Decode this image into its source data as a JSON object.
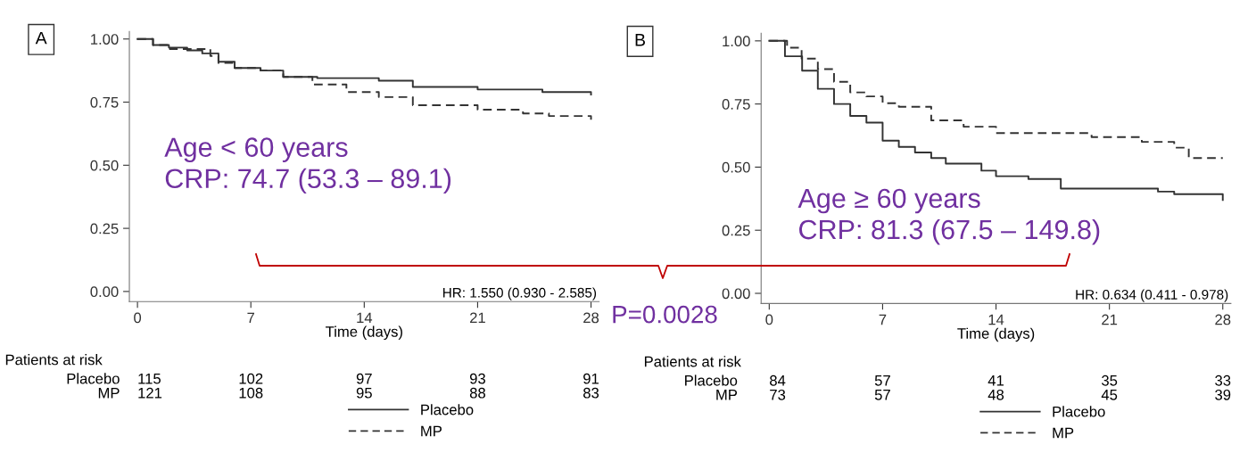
{
  "chart_data": [
    {
      "type": "step",
      "title": "A",
      "xlabel": "Time (days)",
      "xlim": [
        -0.5,
        28.5
      ],
      "xticks": [
        0,
        7,
        14,
        21,
        28
      ],
      "ylim": [
        -0.04,
        1.03
      ],
      "yticks": [
        {
          "value": 0,
          "label": "0.00"
        },
        {
          "value": 0.25,
          "label": "0.25"
        },
        {
          "value": 0.5,
          "label": "0.50"
        },
        {
          "value": 0.75,
          "label": "0.75"
        },
        {
          "value": 1,
          "label": "1.00"
        }
      ],
      "legend": "bottom",
      "grid": false,
      "series": [
        {
          "name": "Placebo",
          "color": "#333333",
          "line_style": "solid",
          "x": [
            0,
            0.96,
            1.94,
            3.07,
            4.0,
            5.0,
            6.0,
            7.6,
            9.0,
            11.1,
            14.9,
            17.0,
            21.0,
            25.0,
            28.0
          ],
          "values": [
            1.0,
            0.976,
            0.966,
            0.955,
            0.943,
            0.91,
            0.885,
            0.875,
            0.85,
            0.845,
            0.835,
            0.81,
            0.8,
            0.79,
            0.78
          ]
        },
        {
          "name": "MP",
          "color": "#333333",
          "line_style": "dashed",
          "x": [
            0,
            0.96,
            2.0,
            4.5,
            5.0,
            6.0,
            7.6,
            9.0,
            10.8,
            12.9,
            14.9,
            17.0,
            21.0,
            23.8,
            25.4,
            28.0
          ],
          "values": [
            1.0,
            0.976,
            0.96,
            0.933,
            0.905,
            0.885,
            0.875,
            0.85,
            0.82,
            0.79,
            0.77,
            0.738,
            0.72,
            0.705,
            0.695,
            0.68
          ]
        }
      ],
      "annotations": [
        "Age < 60 years\nCRP: 74.7 (53.3 – 89.1)",
        "HR: 1.550 (0.930 - 2.585)",
        "Patients at risk",
        "Placebo 115 102 97 93 91",
        "MP 121 108 95 88 83",
        "P=0.0028"
      ]
    },
    {
      "type": "step",
      "title": "B",
      "xlabel": "Time (days)",
      "xlim": [
        -0.5,
        28.5
      ],
      "xticks": [
        0,
        7,
        14,
        21,
        28
      ],
      "ylim": [
        -0.04,
        1.03
      ],
      "yticks": [
        {
          "value": 0,
          "label": "0.00"
        },
        {
          "value": 0.25,
          "label": "0.25"
        },
        {
          "value": 0.5,
          "label": "0.50"
        },
        {
          "value": 0.75,
          "label": "0.75"
        },
        {
          "value": 1,
          "label": "1.00"
        }
      ],
      "legend": "bottom",
      "grid": false,
      "series": [
        {
          "name": "Placebo",
          "color": "#333333",
          "line_style": "solid",
          "x": [
            0,
            0.97,
            2.03,
            3.0,
            4.0,
            5.0,
            6.0,
            7.0,
            8.0,
            9.0,
            10.0,
            10.9,
            13.1,
            14.0,
            16.0,
            18.0,
            24.0,
            25.0,
            28.0
          ],
          "values": [
            1.0,
            0.939,
            0.882,
            0.81,
            0.75,
            0.703,
            0.676,
            0.605,
            0.58,
            0.558,
            0.536,
            0.514,
            0.486,
            0.464,
            0.453,
            0.415,
            0.403,
            0.393,
            0.37
          ]
        },
        {
          "name": "MP",
          "color": "#333333",
          "line_style": "dashed",
          "x": [
            0,
            1.1,
            2.0,
            3.0,
            4.0,
            5.0,
            6.0,
            7.0,
            8.0,
            10.0,
            12.0,
            14.0,
            19.9,
            23.0,
            25.0,
            25.9,
            28.0
          ],
          "values": [
            1.0,
            0.973,
            0.93,
            0.888,
            0.838,
            0.796,
            0.78,
            0.753,
            0.739,
            0.685,
            0.66,
            0.635,
            0.619,
            0.6,
            0.577,
            0.536,
            0.536
          ]
        }
      ],
      "annotations": [
        "Age ≥ 60 years\nCRP: 81.3 (67.5 – 149.8)",
        "HR: 0.634 (0.411 - 0.978)",
        "Patients at risk",
        "Placebo 84 57 41 35 33",
        "MP 73 57 48 45 39"
      ]
    }
  ]
}
